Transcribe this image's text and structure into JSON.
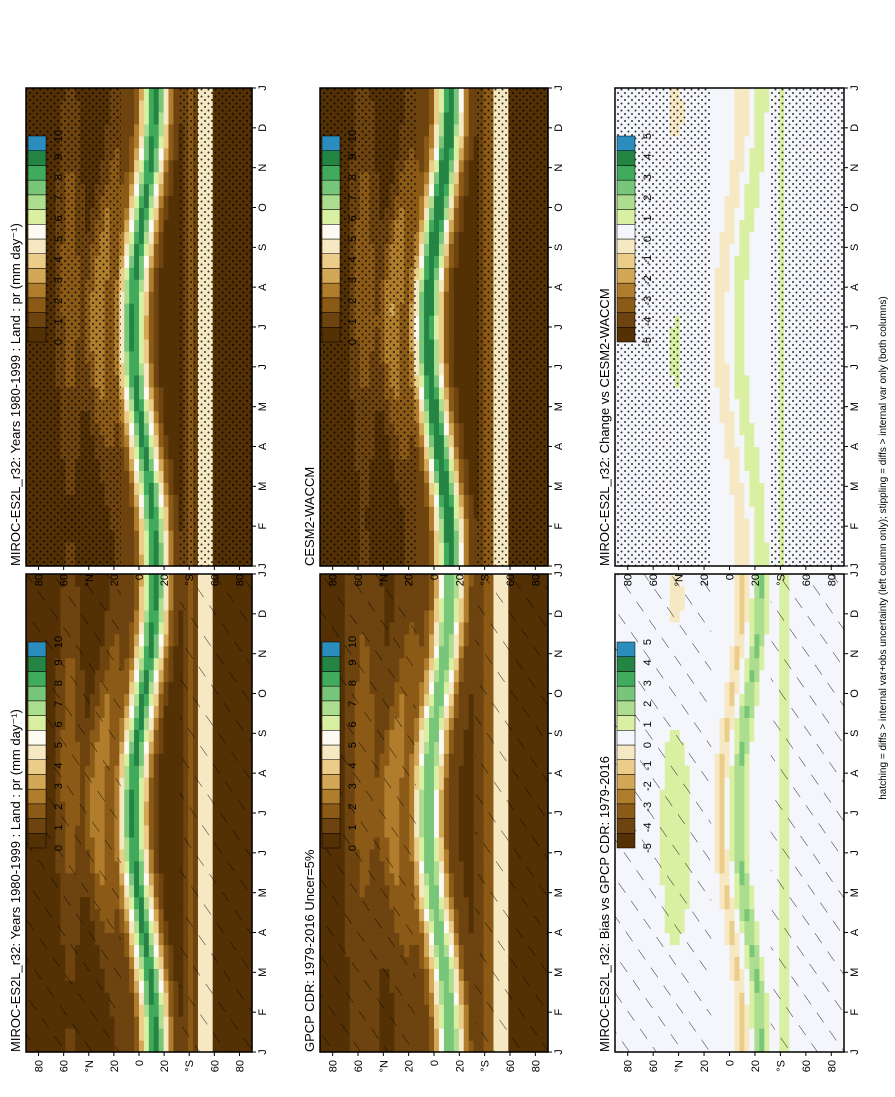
{
  "figure_note": "hatching = diffs > internal var+obs uncertainty (left column only); stippling = diffs > internal var only (both columns)",
  "palettes": {
    "abs": [
      "#543005",
      "#6d430f",
      "#8c5a17",
      "#b07d2d",
      "#d2a757",
      "#ebcc88",
      "#f6e8c3",
      "#fdfbf1",
      "#d9f0a3",
      "#addd8e",
      "#78c679",
      "#41ab5d",
      "#238443",
      "#2b8cbe"
    ],
    "diff": [
      "#543005",
      "#6d430f",
      "#8c5a17",
      "#b07d2d",
      "#d2a757",
      "#ebcc88",
      "#f6e8c3",
      "#f4f6fb",
      "#d9f0a3",
      "#addd8e",
      "#78c679",
      "#41ab5d",
      "#238443",
      "#2b8cbe"
    ]
  },
  "chart_data": [
    {
      "type": "heatmap",
      "title": "MIROC-ES2L_r32: Years 1980-1999 : Land : pr (mm day⁻¹)",
      "months": [
        "J",
        "F",
        "M",
        "A",
        "M",
        "J",
        "J",
        "A",
        "S",
        "O",
        "N",
        "D",
        "J"
      ],
      "lat_ticks": [
        "80",
        "60",
        "°N",
        "20",
        "0",
        "20",
        "°S",
        "60",
        "80"
      ],
      "colorbar": [
        "0",
        "1",
        "2",
        "3",
        "4",
        "5",
        "6",
        "7",
        "8",
        "9",
        "10"
      ],
      "overlay": "hatch",
      "kind": "abs"
    },
    {
      "type": "heatmap",
      "title": "MIROC-ES2L_r32: Years 1980-1999 : Land : pr (mm day⁻¹)",
      "months": [
        "J",
        "F",
        "M",
        "A",
        "M",
        "J",
        "J",
        "A",
        "S",
        "O",
        "N",
        "D",
        "J"
      ],
      "lat_ticks": [
        "80",
        "60",
        "°N",
        "20",
        "0",
        "20",
        "°S",
        "60",
        "80"
      ],
      "colorbar": [
        "0",
        "1",
        "2",
        "3",
        "4",
        "5",
        "6",
        "7",
        "8",
        "9",
        "10"
      ],
      "overlay": "stipple",
      "kind": "abs"
    },
    {
      "type": "heatmap",
      "title": "GPCP CDR: 1979-2016 Uncer=5%",
      "months": [
        "J",
        "F",
        "M",
        "A",
        "M",
        "J",
        "J",
        "A",
        "S",
        "O",
        "N",
        "D",
        "J"
      ],
      "lat_ticks": [
        "80",
        "60",
        "°N",
        "20",
        "0",
        "20",
        "°S",
        "60",
        "80"
      ],
      "colorbar": [
        "0",
        "1",
        "2",
        "3",
        "4",
        "5",
        "6",
        "7",
        "8",
        "9",
        "10"
      ],
      "overlay": "hatch",
      "kind": "abs"
    },
    {
      "type": "heatmap",
      "title": "CESM2-WACCM",
      "months": [
        "J",
        "F",
        "M",
        "A",
        "M",
        "J",
        "J",
        "A",
        "S",
        "O",
        "N",
        "D",
        "J"
      ],
      "lat_ticks": [
        "80",
        "60",
        "°N",
        "20",
        "0",
        "20",
        "°S",
        "60",
        "80"
      ],
      "colorbar": [
        "0",
        "1",
        "2",
        "3",
        "4",
        "5",
        "6",
        "7",
        "8",
        "9",
        "10"
      ],
      "overlay": "stipple",
      "kind": "abs"
    },
    {
      "type": "heatmap",
      "title": "MIROC-ES2L_r32: Bias vs GPCP CDR: 1979-2016",
      "months": [
        "J",
        "F",
        "M",
        "A",
        "M",
        "J",
        "J",
        "A",
        "S",
        "O",
        "N",
        "D",
        "J"
      ],
      "lat_ticks": [
        "80",
        "60",
        "°N",
        "20",
        "0",
        "20",
        "°S",
        "60",
        "80"
      ],
      "colorbar": [
        "-5",
        "-4",
        "-3",
        "-2",
        "-1",
        "0",
        "1",
        "2",
        "3",
        "4",
        "5"
      ],
      "overlay": "hatch",
      "kind": "diff"
    },
    {
      "type": "heatmap",
      "title": "MIROC-ES2L_r32: Change vs CESM2-WACCM",
      "months": [
        "J",
        "F",
        "M",
        "A",
        "M",
        "J",
        "J",
        "A",
        "S",
        "O",
        "N",
        "D",
        "J"
      ],
      "lat_ticks": [
        "80",
        "60",
        "°N",
        "20",
        "0",
        "20",
        "°S",
        "60",
        "80"
      ],
      "colorbar": [
        "-5",
        "-4",
        "-3",
        "-2",
        "-1",
        "0",
        "1",
        "2",
        "3",
        "4",
        "5"
      ],
      "overlay": "stipple",
      "kind": "diff"
    }
  ]
}
